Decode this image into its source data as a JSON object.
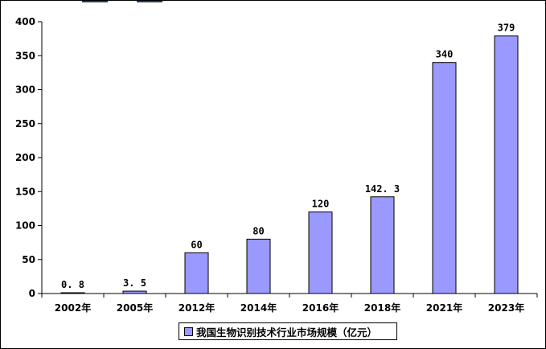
{
  "chart_data": {
    "type": "bar",
    "categories": [
      "2002年",
      "2005年",
      "2012年",
      "2014年",
      "2016年",
      "2018年",
      "2021年",
      "2023年"
    ],
    "values": [
      0.8,
      3.5,
      60,
      80,
      120,
      142.3,
      340,
      379
    ],
    "data_labels": [
      "0. 8",
      "3. 5",
      "60",
      "80",
      "120",
      "142. 3",
      "340",
      "379"
    ],
    "y_ticks": [
      "0",
      "50",
      "100",
      "150",
      "200",
      "250",
      "300",
      "350",
      "400"
    ],
    "ylim": [
      0,
      400
    ],
    "grid": false,
    "legend_position": "bottom",
    "series": [
      {
        "name": "我国生物识别技术行业市场规模（亿元）",
        "values": [
          0.8,
          3.5,
          60,
          80,
          120,
          142.3,
          340,
          379
        ]
      }
    ],
    "colors": {
      "bar_fill": "#9999ff",
      "bar_stroke": "#000000",
      "axis": "#000000"
    }
  }
}
